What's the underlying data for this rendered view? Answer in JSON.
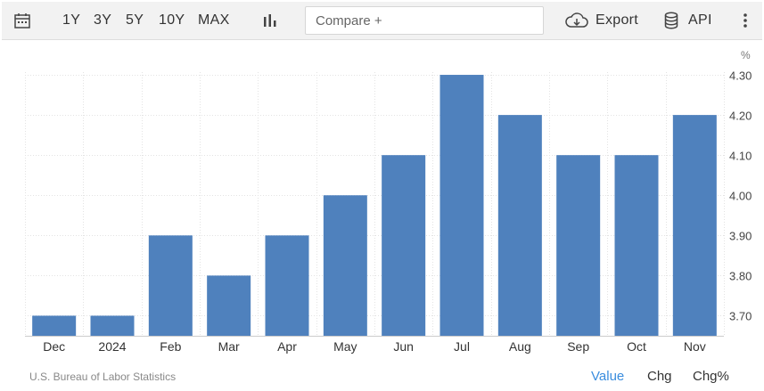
{
  "toolbar": {
    "ranges": [
      "1Y",
      "3Y",
      "5Y",
      "10Y",
      "MAX"
    ],
    "compare_placeholder": "Compare +",
    "export_label": "Export",
    "api_label": "API",
    "icons": [
      "calendar-icon",
      "bar-chart-icon",
      "cloud-download-icon",
      "database-icon",
      "more-vertical-icon"
    ]
  },
  "chart_data": {
    "type": "bar",
    "unit": "%",
    "categories": [
      "Dec",
      "2024",
      "Feb",
      "Mar",
      "Apr",
      "May",
      "Jun",
      "Jul",
      "Aug",
      "Sep",
      "Oct",
      "Nov"
    ],
    "values": [
      3.7,
      3.7,
      3.9,
      3.8,
      3.9,
      4.0,
      4.1,
      4.3,
      4.2,
      4.1,
      4.1,
      4.2
    ],
    "yticks": [
      "3.70",
      "3.80",
      "3.90",
      "4.00",
      "4.10",
      "4.20",
      "4.30"
    ],
    "ylim": [
      3.65,
      4.35
    ],
    "bar_color": "#4f81bd",
    "grid": true,
    "y_axis_position": "right"
  },
  "footer": {
    "source": "U.S. Bureau of Labor Statistics",
    "tabs": [
      "Value",
      "Chg",
      "Chg%"
    ],
    "active_tab": "Value",
    "active_color": "#3a8dde"
  }
}
